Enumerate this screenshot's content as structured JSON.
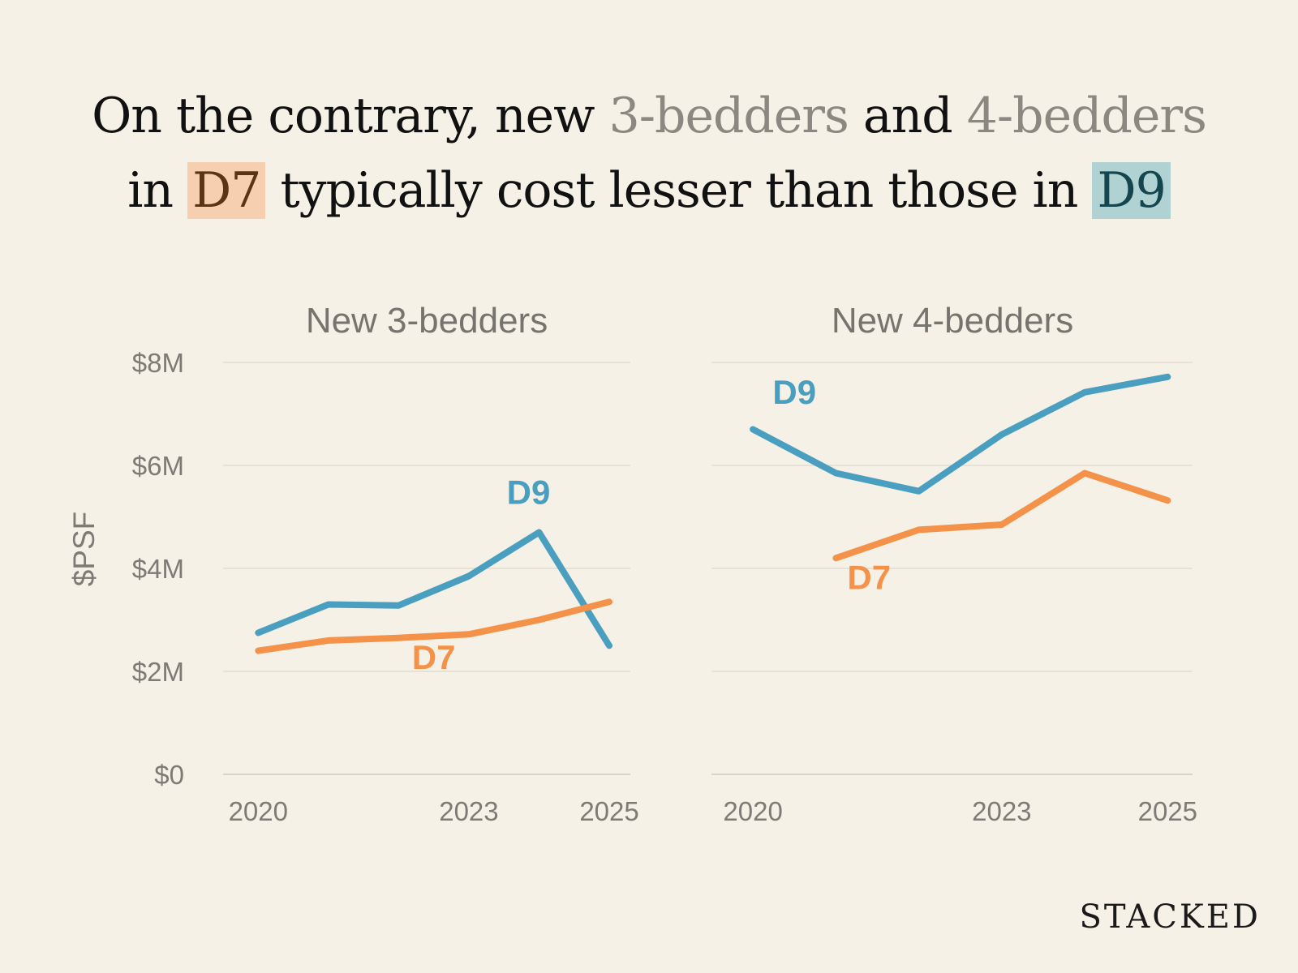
{
  "headline": {
    "line1": {
      "pre": "On the contrary, new ",
      "hl1": "3-bedders",
      "mid": " and ",
      "hl2": "4-bedders"
    },
    "line2": {
      "pre": "in ",
      "d7": "D7",
      "mid": " typically cost lesser than those in ",
      "d9": "D9"
    }
  },
  "colors": {
    "D9": "#4a9fc0",
    "D7": "#f4924a",
    "grid": "#e2ddd2",
    "axis_text": "#7d7b75"
  },
  "chart_data": [
    {
      "type": "line",
      "title": "New 3-bedders",
      "ylabel": "$PSF",
      "ylim": [
        0,
        8
      ],
      "yticks": [
        {
          "v": 0,
          "label": "$0"
        },
        {
          "v": 2,
          "label": "$2M"
        },
        {
          "v": 4,
          "label": "$4M"
        },
        {
          "v": 6,
          "label": "$6M"
        },
        {
          "v": 8,
          "label": "$8M"
        }
      ],
      "xlim": [
        2019.5,
        2025.3
      ],
      "xticks": [
        {
          "v": 2020,
          "label": "2020"
        },
        {
          "v": 2023,
          "label": "2023"
        },
        {
          "v": 2025,
          "label": "2025"
        }
      ],
      "series": [
        {
          "name": "D9",
          "x": [
            2020,
            2021,
            2022,
            2023,
            2024,
            2025
          ],
          "values": [
            2.75,
            3.3,
            3.28,
            3.85,
            4.7,
            2.5
          ],
          "label_at": [
            2023.85,
            5.25
          ]
        },
        {
          "name": "D7",
          "x": [
            2020,
            2021,
            2022,
            2023,
            2024,
            2025
          ],
          "values": [
            2.4,
            2.6,
            2.65,
            2.72,
            3.0,
            3.35
          ],
          "label_at": [
            2022.5,
            2.05
          ]
        }
      ]
    },
    {
      "type": "line",
      "title": "New 4-bedders",
      "ylabel": "",
      "ylim": [
        0,
        8
      ],
      "yticks": [
        {
          "v": 0,
          "label": ""
        },
        {
          "v": 2,
          "label": ""
        },
        {
          "v": 4,
          "label": ""
        },
        {
          "v": 6,
          "label": ""
        },
        {
          "v": 8,
          "label": ""
        }
      ],
      "xlim": [
        2019.5,
        2025.3
      ],
      "xticks": [
        {
          "v": 2020,
          "label": "2020"
        },
        {
          "v": 2023,
          "label": "2023"
        },
        {
          "v": 2025,
          "label": "2025"
        }
      ],
      "series": [
        {
          "name": "D9",
          "x": [
            2020,
            2021,
            2022,
            2023,
            2024,
            2025
          ],
          "values": [
            6.7,
            5.85,
            5.5,
            6.6,
            7.42,
            7.72
          ],
          "label_at": [
            2020.5,
            7.2
          ]
        },
        {
          "name": "D7",
          "x": [
            2021,
            2022,
            2023,
            2024,
            2025
          ],
          "values": [
            4.2,
            4.75,
            4.85,
            5.85,
            5.32
          ],
          "label_at": [
            2021.4,
            3.6
          ]
        }
      ]
    }
  ],
  "brand": "STACKED"
}
